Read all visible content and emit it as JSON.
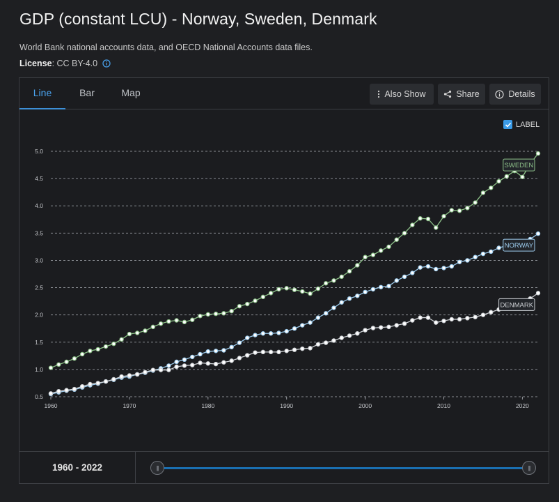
{
  "header": {
    "title": "GDP (constant LCU) - Norway, Sweden, Denmark",
    "source": "World Bank national accounts data, and OECD National Accounts data files.",
    "license_label": "License",
    "license_value": " : CC BY-4.0"
  },
  "tabs": [
    {
      "label": "Line",
      "active": true
    },
    {
      "label": "Bar",
      "active": false
    },
    {
      "label": "Map",
      "active": false
    }
  ],
  "toolbar": {
    "also_show": "Also Show",
    "share": "Share",
    "details": "Details"
  },
  "label_toggle": {
    "text": "LABEL",
    "checked": true
  },
  "footer": {
    "range": "1960 - 2022"
  },
  "colors": {
    "sweden": "#8fc38a",
    "norway": "#9ecdef",
    "denmark": "#cfd2d6",
    "grid": "#8a8d92",
    "accent": "#3d8fd6"
  },
  "chart_data": {
    "type": "line",
    "title": "GDP (constant LCU) - Norway, Sweden, Denmark",
    "xlabel": "",
    "ylabel": "",
    "xlim": [
      1960,
      2022
    ],
    "ylim": [
      0.5,
      5.0
    ],
    "yticks": [
      "0.5",
      "1.0",
      "1.5",
      "2.0",
      "2.5",
      "3.0",
      "3.5",
      "4.0",
      "4.5",
      "5.0"
    ],
    "xticks": [
      "1960",
      "1970",
      "1980",
      "1990",
      "2000",
      "2010",
      "2020"
    ],
    "x": [
      1960,
      1961,
      1962,
      1963,
      1964,
      1965,
      1966,
      1967,
      1968,
      1969,
      1970,
      1971,
      1972,
      1973,
      1974,
      1975,
      1976,
      1977,
      1978,
      1979,
      1980,
      1981,
      1982,
      1983,
      1984,
      1985,
      1986,
      1987,
      1988,
      1989,
      1990,
      1991,
      1992,
      1993,
      1994,
      1995,
      1996,
      1997,
      1998,
      1999,
      2000,
      2001,
      2002,
      2003,
      2004,
      2005,
      2006,
      2007,
      2008,
      2009,
      2010,
      2011,
      2012,
      2013,
      2014,
      2015,
      2016,
      2017,
      2018,
      2019,
      2020,
      2021,
      2022
    ],
    "series": [
      {
        "name": "SWEDEN",
        "values": [
          1.03,
          1.09,
          1.14,
          1.2,
          1.28,
          1.34,
          1.37,
          1.42,
          1.47,
          1.55,
          1.65,
          1.67,
          1.71,
          1.78,
          1.84,
          1.88,
          1.9,
          1.87,
          1.91,
          1.98,
          2.01,
          2.02,
          2.03,
          2.07,
          2.16,
          2.2,
          2.26,
          2.33,
          2.4,
          2.47,
          2.49,
          2.46,
          2.43,
          2.39,
          2.48,
          2.58,
          2.63,
          2.7,
          2.8,
          2.91,
          3.06,
          3.1,
          3.18,
          3.25,
          3.38,
          3.5,
          3.65,
          3.77,
          3.76,
          3.6,
          3.81,
          3.92,
          3.91,
          3.96,
          4.06,
          4.24,
          4.33,
          4.45,
          4.54,
          4.64,
          4.53,
          4.77,
          4.96
        ]
      },
      {
        "name": "NORWAY",
        "values": [
          0.55,
          0.58,
          0.61,
          0.63,
          0.67,
          0.71,
          0.74,
          0.78,
          0.81,
          0.85,
          0.87,
          0.91,
          0.94,
          0.98,
          1.02,
          1.07,
          1.14,
          1.18,
          1.23,
          1.28,
          1.33,
          1.34,
          1.35,
          1.41,
          1.49,
          1.58,
          1.63,
          1.66,
          1.66,
          1.67,
          1.7,
          1.75,
          1.81,
          1.86,
          1.95,
          2.03,
          2.13,
          2.23,
          2.3,
          2.35,
          2.42,
          2.47,
          2.51,
          2.53,
          2.63,
          2.7,
          2.77,
          2.87,
          2.89,
          2.84,
          2.86,
          2.89,
          2.97,
          3.0,
          3.06,
          3.12,
          3.16,
          3.23,
          3.27,
          3.3,
          3.26,
          3.39,
          3.49
        ]
      },
      {
        "name": "DENMARK",
        "values": [
          0.56,
          0.6,
          0.62,
          0.64,
          0.69,
          0.73,
          0.75,
          0.78,
          0.82,
          0.87,
          0.89,
          0.91,
          0.95,
          0.99,
          0.99,
          0.99,
          1.05,
          1.07,
          1.08,
          1.12,
          1.11,
          1.1,
          1.13,
          1.16,
          1.21,
          1.26,
          1.31,
          1.32,
          1.32,
          1.32,
          1.34,
          1.36,
          1.38,
          1.39,
          1.46,
          1.49,
          1.53,
          1.58,
          1.62,
          1.66,
          1.72,
          1.76,
          1.77,
          1.78,
          1.81,
          1.84,
          1.9,
          1.95,
          1.95,
          1.86,
          1.89,
          1.92,
          1.92,
          1.94,
          1.96,
          2.0,
          2.05,
          2.1,
          2.15,
          2.18,
          2.15,
          2.3,
          2.4
        ]
      }
    ],
    "labels_shown": true,
    "grid": true
  }
}
